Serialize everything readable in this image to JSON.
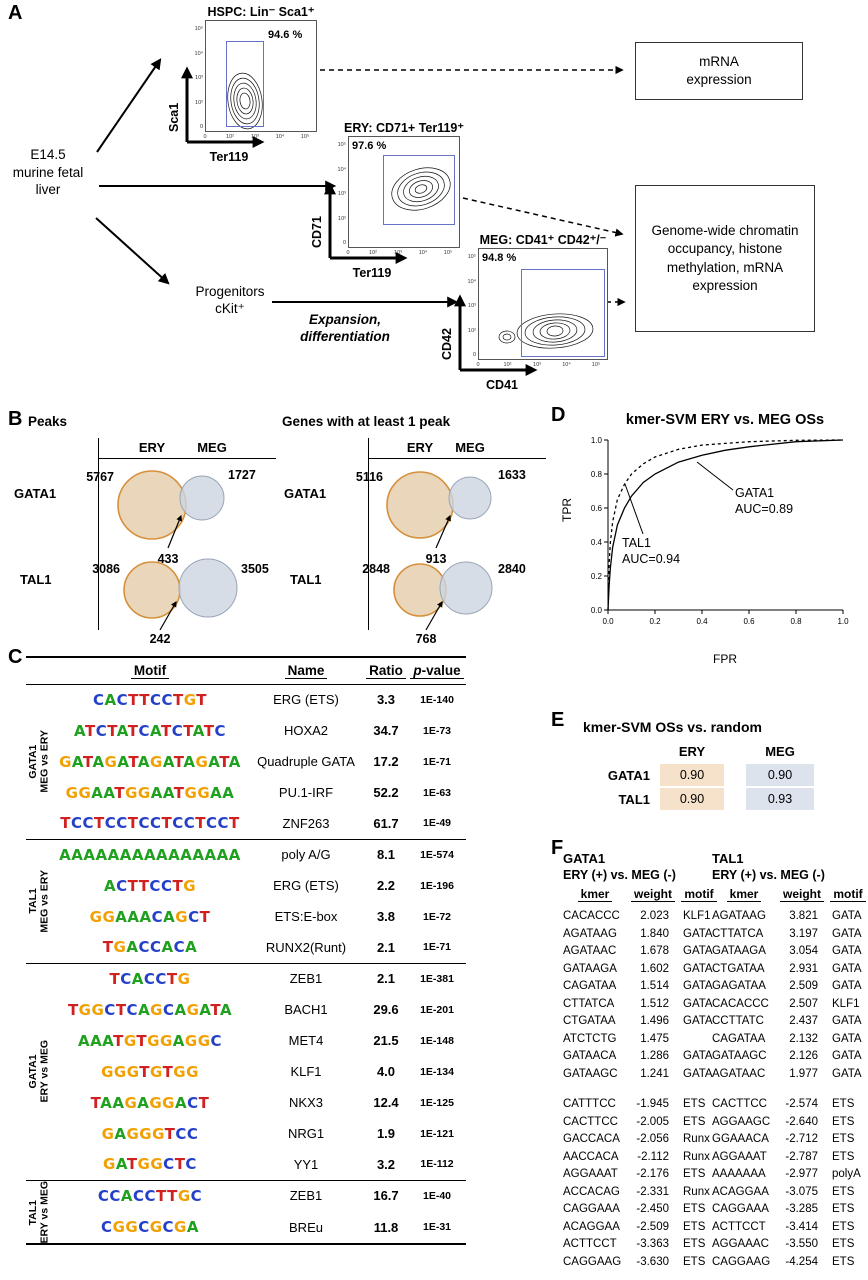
{
  "colors": {
    "ven n_comment": "",
    "venn_left_fill": "#e7d1b4",
    "venn_left_stroke": "#d6903a",
    "venn_right_fill": "#ccd4e1",
    "venn_right_stroke": "#9aa6b6",
    "ery_cell": "#f6e2cb",
    "meg_cell": "#dce3ed",
    "gate": "#6672c8",
    "base_A": "#1fa01f",
    "base_C": "#2440c8",
    "base_G": "#f0a000",
    "base_T": "#d02020"
  },
  "panelA": {
    "label": "A",
    "source": "E14.5 murine fetal liver",
    "hspc": {
      "title": "HSPC: Lin⁻ Sca1⁺",
      "pct": "94.6 %",
      "x_label": "Ter119",
      "y_label": "Sca1"
    },
    "ery": {
      "title": "ERY: CD71+ Ter119⁺",
      "pct": "97.6 %",
      "x_label": "Ter119",
      "y_label": "CD71"
    },
    "meg": {
      "title": "MEG: CD41⁺ CD42⁺/⁻",
      "pct": "94.8 %",
      "x_label": "CD41",
      "y_label": "CD42"
    },
    "axis_ticks": [
      "0",
      "10²",
      "10³",
      "10⁴",
      "10⁵"
    ],
    "progenitors_line1": "Progenitors",
    "progenitors_line2": "cKit⁺",
    "expansion": "Expansion, differentiation",
    "box_mrna": "mRNA expression",
    "box_genome": "Genome-wide chromatin occupancy, histone methylation, mRNA expression"
  },
  "panelB": {
    "label": "B",
    "left": {
      "title": "Peaks",
      "cols": [
        "ERY",
        "MEG"
      ],
      "rows": [
        {
          "name": "GATA1",
          "left_n": "5767",
          "right_n": "1727",
          "overlap_n": "433"
        },
        {
          "name": "TAL1",
          "left_n": "3086",
          "right_n": "3505",
          "overlap_n": "242"
        }
      ]
    },
    "right": {
      "title": "Genes with at least 1 peak",
      "cols": [
        "ERY",
        "MEG"
      ],
      "rows": [
        {
          "name": "GATA1",
          "left_n": "5116",
          "right_n": "1633",
          "overlap_n": "913"
        },
        {
          "name": "TAL1",
          "left_n": "2848",
          "right_n": "2840",
          "overlap_n": "768"
        }
      ]
    }
  },
  "panelC": {
    "label": "C",
    "headers": [
      "Motif",
      "Name",
      "Ratio",
      "p-value"
    ],
    "groups": [
      {
        "side1": "GATA1",
        "side2": "MEG vs ERY",
        "rows": [
          {
            "logo": "CACTTCCTGT",
            "name": "ERG (ETS)",
            "ratio": "3.3",
            "pvalue": "1E-140"
          },
          {
            "logo": "ATCTATCATCTATC",
            "name": "HOXA2",
            "ratio": "34.7",
            "pvalue": "1E-73"
          },
          {
            "logo": "GATAGATAGATAGATA",
            "name": "Quadruple GATA",
            "ratio": "17.2",
            "pvalue": "1E-71"
          },
          {
            "logo": "GGAATGGAATGGAA",
            "name": "PU.1-IRF",
            "ratio": "52.2",
            "pvalue": "1E-63"
          },
          {
            "logo": "TCCTCCTCCTCCTCCT",
            "name": "ZNF263",
            "ratio": "61.7",
            "pvalue": "1E-49"
          }
        ]
      },
      {
        "side1": "TAL1",
        "side2": "MEG vs ERY",
        "rows": [
          {
            "logo": "AAAAAAAAAAAAAAA",
            "name": "poly A/G",
            "ratio": "8.1",
            "pvalue": "1E-574"
          },
          {
            "logo": "ACTTCCTG",
            "name": "ERG (ETS)",
            "ratio": "2.2",
            "pvalue": "1E-196"
          },
          {
            "logo": "GGAAACAGCT",
            "name": "ETS:E-box",
            "ratio": "3.8",
            "pvalue": "1E-72"
          },
          {
            "logo": "TGACCACA",
            "name": "RUNX2(Runt)",
            "ratio": "2.1",
            "pvalue": "1E-71"
          }
        ]
      },
      {
        "side1": "GATA1",
        "side2": "ERY vs MEG",
        "rows": [
          {
            "logo": "TCACCTG",
            "name": "ZEB1",
            "ratio": "2.1",
            "pvalue": "1E-381"
          },
          {
            "logo": "TGGCTCAGCAGATA",
            "name": "BACH1",
            "ratio": "29.6",
            "pvalue": "1E-201"
          },
          {
            "logo": "AAATGTGGAGGC",
            "name": "MET4",
            "ratio": "21.5",
            "pvalue": "1E-148"
          },
          {
            "logo": "GGGTGTGG",
            "name": "KLF1",
            "ratio": "4.0",
            "pvalue": "1E-134"
          },
          {
            "logo": "TAAGAGGACT",
            "name": "NKX3",
            "ratio": "12.4",
            "pvalue": "1E-125"
          },
          {
            "logo": "GAGGGTCC",
            "name": "NRG1",
            "ratio": "1.9",
            "pvalue": "1E-121"
          },
          {
            "logo": "GATGGCTC",
            "name": "YY1",
            "ratio": "3.2",
            "pvalue": "1E-112"
          }
        ]
      },
      {
        "side1": "TAL1",
        "side2": "ERY vs MEG",
        "rows": [
          {
            "logo": "CCACCTTGC",
            "name": "ZEB1",
            "ratio": "16.7",
            "pvalue": "1E-40"
          },
          {
            "logo": "CGGCGCGA",
            "name": "BREu",
            "ratio": "11.8",
            "pvalue": "1E-31"
          }
        ]
      }
    ]
  },
  "panelD": {
    "label": "D",
    "title": "kmer-SVM ERY vs. MEG OSs",
    "xlabel": "FPR",
    "ylabel": "TPR",
    "ticks": [
      "0.0",
      "0.2",
      "0.4",
      "0.6",
      "0.8",
      "1.0"
    ],
    "annotations": [
      {
        "label": "GATA1",
        "auc": "AUC=0.89"
      },
      {
        "label": "TAL1",
        "auc": "AUC=0.94"
      }
    ]
  },
  "chart_data": {
    "type": "line",
    "title": "kmer-SVM ERY vs. MEG OSs",
    "xlabel": "FPR",
    "ylabel": "TPR",
    "xlim": [
      0,
      1
    ],
    "ylim": [
      0,
      1
    ],
    "grid": false,
    "legend_position": "annotated-on-plot",
    "series": [
      {
        "name": "GATA1",
        "auc": 0.89,
        "line": "solid",
        "x": [
          0,
          0.005,
          0.01,
          0.02,
          0.04,
          0.07,
          0.1,
          0.15,
          0.2,
          0.3,
          0.4,
          0.5,
          0.6,
          0.8,
          1.0
        ],
        "y": [
          0,
          0.15,
          0.25,
          0.37,
          0.5,
          0.6,
          0.67,
          0.75,
          0.8,
          0.87,
          0.91,
          0.94,
          0.96,
          0.99,
          1.0
        ]
      },
      {
        "name": "TAL1",
        "auc": 0.94,
        "line": "dashed",
        "x": [
          0,
          0.005,
          0.01,
          0.02,
          0.04,
          0.07,
          0.1,
          0.15,
          0.2,
          0.3,
          0.4,
          0.5,
          0.6,
          0.8,
          1.0
        ],
        "y": [
          0,
          0.28,
          0.4,
          0.52,
          0.65,
          0.74,
          0.8,
          0.86,
          0.9,
          0.945,
          0.97,
          0.98,
          0.99,
          0.998,
          1.0
        ]
      }
    ]
  },
  "panelE": {
    "label": "E",
    "title": "kmer-SVM OSs vs. random",
    "cols": [
      "ERY",
      "MEG"
    ],
    "rows": [
      {
        "name": "GATA1",
        "ery": "0.90",
        "meg": "0.90"
      },
      {
        "name": "TAL1",
        "ery": "0.90",
        "meg": "0.93"
      }
    ]
  },
  "panelF": {
    "label": "F",
    "tables": [
      {
        "title": "GATA1",
        "subtitle": "ERY (+) vs. MEG (-)",
        "headers": [
          "kmer",
          "weight",
          "motif"
        ],
        "rows_positive": [
          [
            "CACACCC",
            "2.023",
            "KLF1"
          ],
          [
            "AGATAAG",
            "1.840",
            "GATA"
          ],
          [
            "AGATAAC",
            "1.678",
            "GATA"
          ],
          [
            "GATAAGA",
            "1.602",
            "GATA"
          ],
          [
            "CAGATAA",
            "1.514",
            "GATA"
          ],
          [
            "CTTATCA",
            "1.512",
            "GATA"
          ],
          [
            "CTGATAA",
            "1.496",
            "GATA"
          ],
          [
            "ATCTCTG",
            "1.475",
            ""
          ],
          [
            "GATAACA",
            "1.286",
            "GATA"
          ],
          [
            "GATAAGC",
            "1.241",
            "GATA"
          ]
        ],
        "rows_negative": [
          [
            "CATTTCC",
            "-1.945",
            "ETS"
          ],
          [
            "CACTTCC",
            "-2.005",
            "ETS"
          ],
          [
            "GACCACA",
            "-2.056",
            "Runx"
          ],
          [
            "AACCACA",
            "-2.112",
            "Runx"
          ],
          [
            "AGGAAAT",
            "-2.176",
            "ETS"
          ],
          [
            "ACCACAG",
            "-2.331",
            "Runx"
          ],
          [
            "CAGGAAA",
            "-2.450",
            "ETS"
          ],
          [
            "ACAGGAA",
            "-2.509",
            "ETS"
          ],
          [
            "ACTTCCT",
            "-3.363",
            "ETS"
          ],
          [
            "CAGGAAG",
            "-3.630",
            "ETS"
          ]
        ]
      },
      {
        "title": "TAL1",
        "subtitle": "ERY (+) vs. MEG (-)",
        "headers": [
          "kmer",
          "weight",
          "motif"
        ],
        "rows_positive": [
          [
            "AGATAAG",
            "3.821",
            "GATA"
          ],
          [
            "CTTATCA",
            "3.197",
            "GATA"
          ],
          [
            "GATAAGA",
            "3.054",
            "GATA"
          ],
          [
            "CTGATAA",
            "2.931",
            "GATA"
          ],
          [
            "GAGATAA",
            "2.509",
            "GATA"
          ],
          [
            "CACACCC",
            "2.507",
            "KLF1"
          ],
          [
            "CCTTATC",
            "2.437",
            "GATA"
          ],
          [
            "CAGATAA",
            "2.132",
            "GATA"
          ],
          [
            "GATAAGC",
            "2.126",
            "GATA"
          ],
          [
            "AGATAAC",
            "1.977",
            "GATA"
          ]
        ],
        "rows_negative": [
          [
            "CACTTCC",
            "-2.574",
            "ETS"
          ],
          [
            "AGGAAGC",
            "-2.640",
            "ETS"
          ],
          [
            "GGAAACA",
            "-2.712",
            "ETS"
          ],
          [
            "AGGAAAT",
            "-2.787",
            "ETS"
          ],
          [
            "AAAAAAA",
            "-2.977",
            "polyA"
          ],
          [
            "ACAGGAA",
            "-3.075",
            "ETS"
          ],
          [
            "CAGGAAA",
            "-3.285",
            "ETS"
          ],
          [
            "ACTTCCT",
            "-3.414",
            "ETS"
          ],
          [
            "AGGAAAC",
            "-3.550",
            "ETS"
          ],
          [
            "CAGGAAG",
            "-4.254",
            "ETS"
          ]
        ]
      }
    ]
  }
}
